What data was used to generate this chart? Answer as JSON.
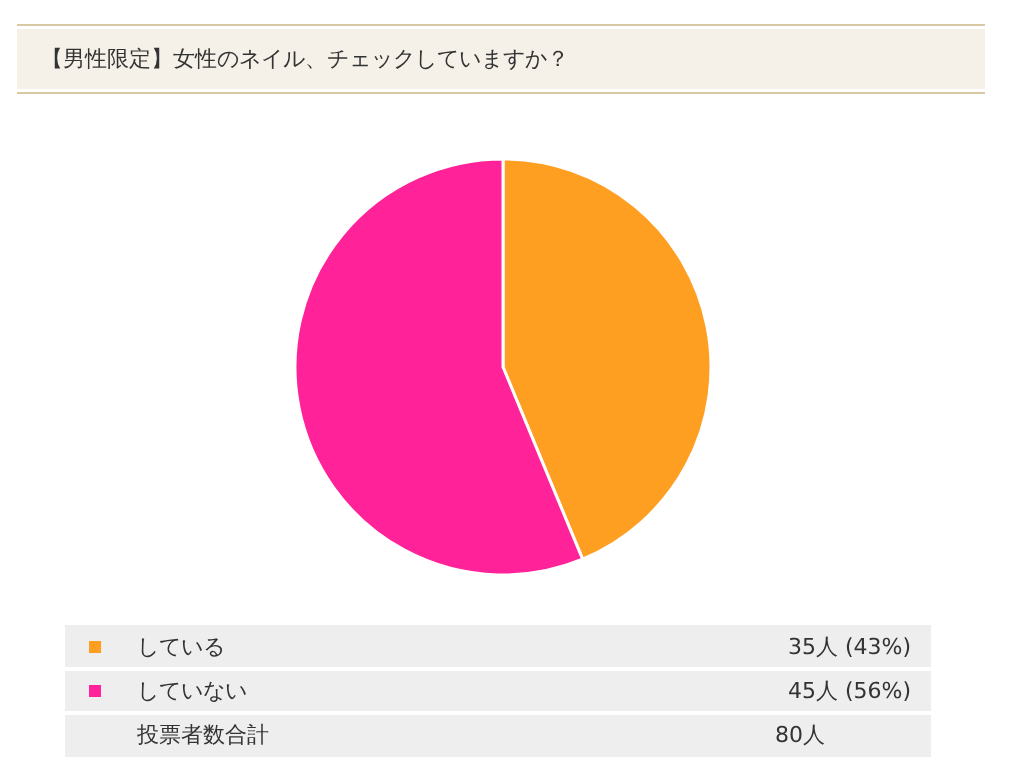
{
  "chart_data": {
    "type": "pie",
    "title": "【男性限定】女性のネイル、チェックしていますか？",
    "categories": [
      "している",
      "していない"
    ],
    "values": [
      35,
      45
    ],
    "colors": [
      "#ff9f22",
      "#ff2298"
    ],
    "value_labels": [
      "35人 (43%)",
      "45人 (56%)"
    ],
    "annotations": [
      "投票者数合計",
      "80人"
    ],
    "legend": "bottom"
  }
}
